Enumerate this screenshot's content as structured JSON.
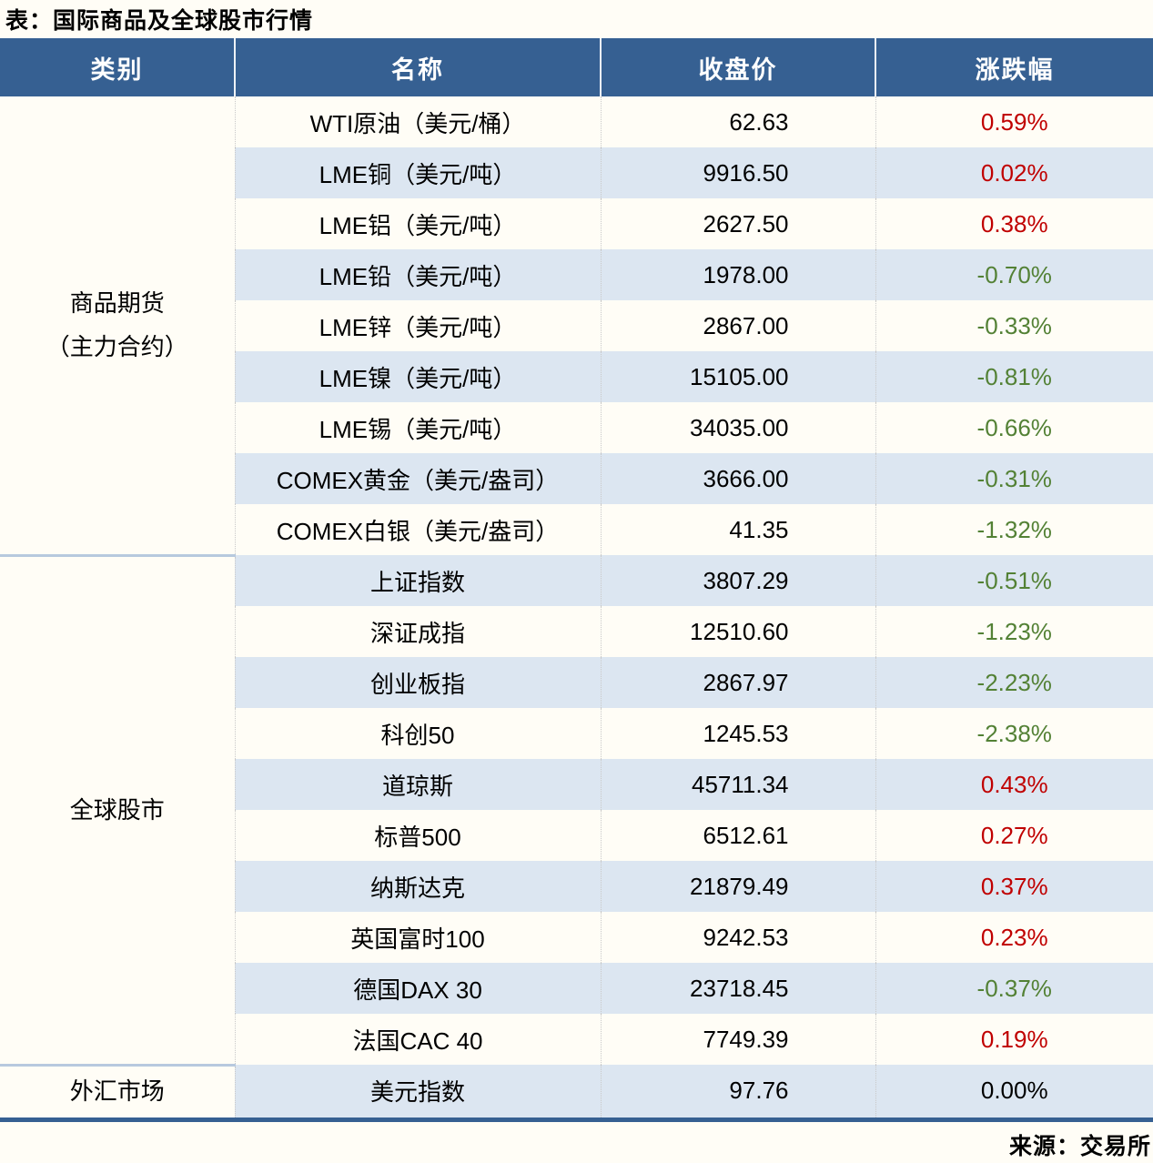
{
  "title": "表：国际商品及全球股市行情",
  "source": "来源：交易所",
  "colors": {
    "header_bg": "#366092",
    "stripe": "#dce6f1",
    "page_bg": "#fffdf6",
    "up": "#c00000",
    "down": "#538135",
    "flat": "#000000"
  },
  "columns": [
    "类别",
    "名称",
    "收盘价",
    "涨跌幅"
  ],
  "table": {
    "sections": [
      {
        "category_lines": [
          "商品期货",
          "（主力合约）"
        ],
        "rows": [
          {
            "name": "WTI原油（美元/桶）",
            "close": "62.63",
            "change": "0.59%",
            "dir": "up"
          },
          {
            "name": "LME铜（美元/吨）",
            "close": "9916.50",
            "change": "0.02%",
            "dir": "up"
          },
          {
            "name": "LME铝（美元/吨）",
            "close": "2627.50",
            "change": "0.38%",
            "dir": "up"
          },
          {
            "name": "LME铅（美元/吨）",
            "close": "1978.00",
            "change": "-0.70%",
            "dir": "down"
          },
          {
            "name": "LME锌（美元/吨）",
            "close": "2867.00",
            "change": "-0.33%",
            "dir": "down"
          },
          {
            "name": "LME镍（美元/吨）",
            "close": "15105.00",
            "change": "-0.81%",
            "dir": "down"
          },
          {
            "name": "LME锡（美元/吨）",
            "close": "34035.00",
            "change": "-0.66%",
            "dir": "down"
          },
          {
            "name": "COMEX黄金（美元/盎司）",
            "close": "3666.00",
            "change": "-0.31%",
            "dir": "down"
          },
          {
            "name": "COMEX白银（美元/盎司）",
            "close": "41.35",
            "change": "-1.32%",
            "dir": "down"
          }
        ]
      },
      {
        "category_lines": [
          "全球股市"
        ],
        "rows": [
          {
            "name": "上证指数",
            "close": "3807.29",
            "change": "-0.51%",
            "dir": "down"
          },
          {
            "name": "深证成指",
            "close": "12510.60",
            "change": "-1.23%",
            "dir": "down"
          },
          {
            "name": "创业板指",
            "close": "2867.97",
            "change": "-2.23%",
            "dir": "down"
          },
          {
            "name": "科创50",
            "close": "1245.53",
            "change": "-2.38%",
            "dir": "down"
          },
          {
            "name": "道琼斯",
            "close": "45711.34",
            "change": "0.43%",
            "dir": "up"
          },
          {
            "name": "标普500",
            "close": "6512.61",
            "change": "0.27%",
            "dir": "up"
          },
          {
            "name": "纳斯达克",
            "close": "21879.49",
            "change": "0.37%",
            "dir": "up"
          },
          {
            "name": "英国富时100",
            "close": "9242.53",
            "change": "0.23%",
            "dir": "up"
          },
          {
            "name": "德国DAX 30",
            "close": "23718.45",
            "change": "-0.37%",
            "dir": "down"
          },
          {
            "name": "法国CAC 40",
            "close": "7749.39",
            "change": "0.19%",
            "dir": "up"
          }
        ]
      },
      {
        "category_lines": [
          "外汇市场"
        ],
        "rows": [
          {
            "name": "美元指数",
            "close": "97.76",
            "change": "0.00%",
            "dir": "flat"
          }
        ]
      }
    ]
  },
  "chart_data": {
    "type": "table",
    "title": "表：国际商品及全球股市行情",
    "columns": [
      "类别",
      "名称",
      "收盘价",
      "涨跌幅"
    ],
    "rows": [
      [
        "商品期货（主力合约）",
        "WTI原油（美元/桶）",
        62.63,
        "0.59%"
      ],
      [
        "商品期货（主力合约）",
        "LME铜（美元/吨）",
        9916.5,
        "0.02%"
      ],
      [
        "商品期货（主力合约）",
        "LME铝（美元/吨）",
        2627.5,
        "0.38%"
      ],
      [
        "商品期货（主力合约）",
        "LME铅（美元/吨）",
        1978.0,
        "-0.70%"
      ],
      [
        "商品期货（主力合约）",
        "LME锌（美元/吨）",
        2867.0,
        "-0.33%"
      ],
      [
        "商品期货（主力合约）",
        "LME镍（美元/吨）",
        15105.0,
        "-0.81%"
      ],
      [
        "商品期货（主力合约）",
        "LME锡（美元/吨）",
        34035.0,
        "-0.66%"
      ],
      [
        "商品期货（主力合约）",
        "COMEX黄金（美元/盎司）",
        3666.0,
        "-0.31%"
      ],
      [
        "商品期货（主力合约）",
        "COMEX白银（美元/盎司）",
        41.35,
        "-1.32%"
      ],
      [
        "全球股市",
        "上证指数",
        3807.29,
        "-0.51%"
      ],
      [
        "全球股市",
        "深证成指",
        12510.6,
        "-1.23%"
      ],
      [
        "全球股市",
        "创业板指",
        2867.97,
        "-2.23%"
      ],
      [
        "全球股市",
        "科创50",
        1245.53,
        "-2.38%"
      ],
      [
        "全球股市",
        "道琼斯",
        45711.34,
        "0.43%"
      ],
      [
        "全球股市",
        "标普500",
        6512.61,
        "0.27%"
      ],
      [
        "全球股市",
        "纳斯达克",
        21879.49,
        "0.37%"
      ],
      [
        "全球股市",
        "英国富时100",
        9242.53,
        "0.23%"
      ],
      [
        "全球股市",
        "德国DAX 30",
        23718.45,
        "-0.37%"
      ],
      [
        "全球股市",
        "法国CAC 40",
        7749.39,
        "0.19%"
      ],
      [
        "外汇市场",
        "美元指数",
        97.76,
        "0.00%"
      ]
    ],
    "legend_note": "红色=上涨, 绿色=下跌, 黑色=持平",
    "source": "来源：交易所"
  }
}
